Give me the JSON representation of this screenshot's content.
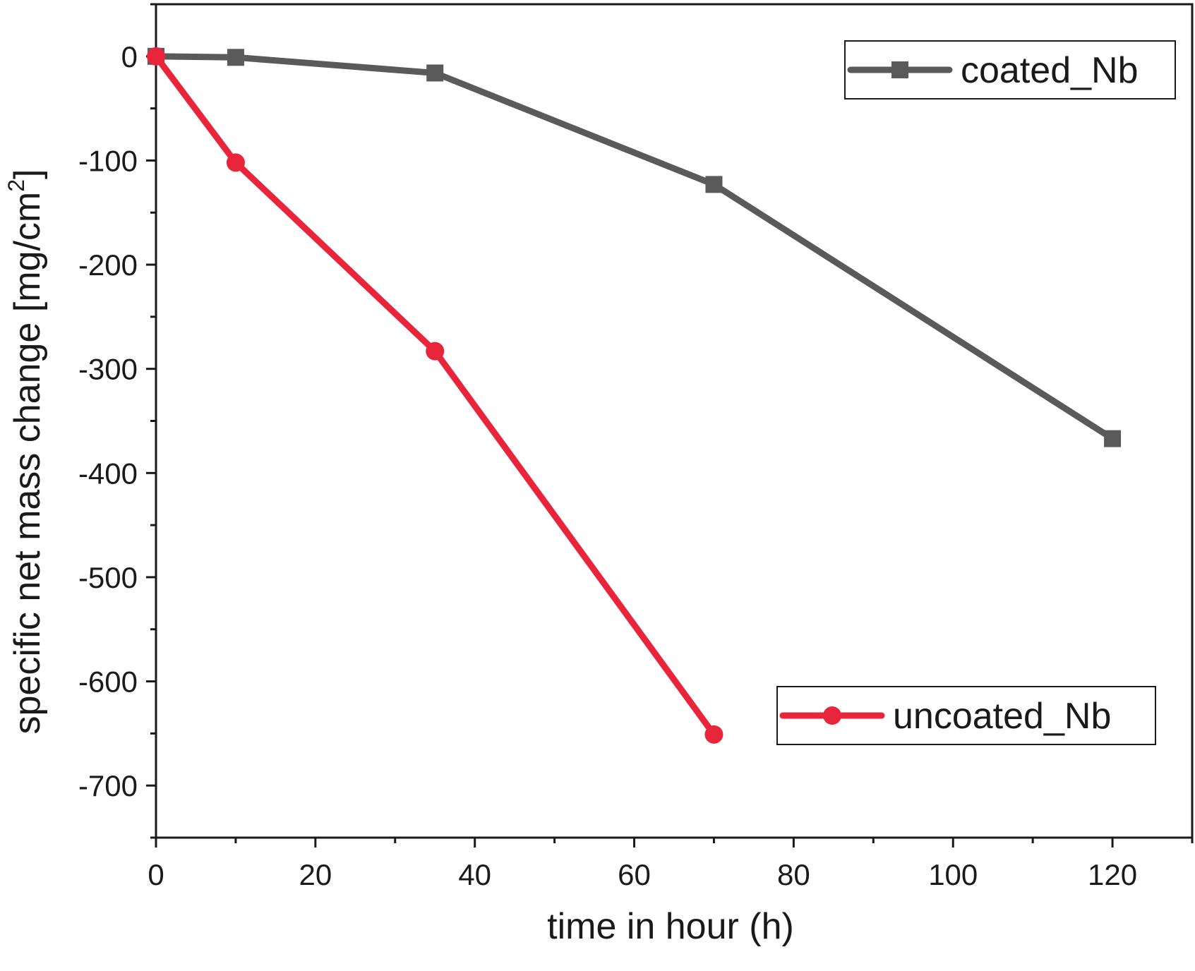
{
  "chart_data": {
    "type": "line",
    "title": "",
    "xlabel": "time in hour (h)",
    "ylabel": "specific net mass change [mg/cm",
    "ylabel_sup": "2",
    "ylabel_end": "]",
    "xlim": [
      0,
      130
    ],
    "ylim": [
      -750,
      50
    ],
    "x_ticks": [
      0,
      20,
      40,
      60,
      80,
      100,
      120
    ],
    "x_tick_labels": [
      "0",
      "20",
      "40",
      "60",
      "80",
      "100",
      "120"
    ],
    "y_ticks": [
      0,
      -100,
      -200,
      -300,
      -400,
      -500,
      -600,
      -700
    ],
    "y_tick_labels": [
      "0",
      "-100",
      "-200",
      "-300",
      "-400",
      "-500",
      "-600",
      "-700"
    ],
    "grid": false,
    "series": [
      {
        "name": "coated_Nb",
        "color": "#5a5a5a",
        "marker": "square",
        "x": [
          0,
          10,
          35,
          70,
          120
        ],
        "y": [
          0,
          -1,
          -16,
          -123,
          -367
        ]
      },
      {
        "name": "uncoated_Nb",
        "color": "#e8253a",
        "marker": "circle",
        "x": [
          0,
          10,
          35,
          70
        ],
        "y": [
          0,
          -102,
          -283,
          -651
        ]
      }
    ],
    "legend_placement": [
      "top-right",
      "lower-right"
    ]
  }
}
